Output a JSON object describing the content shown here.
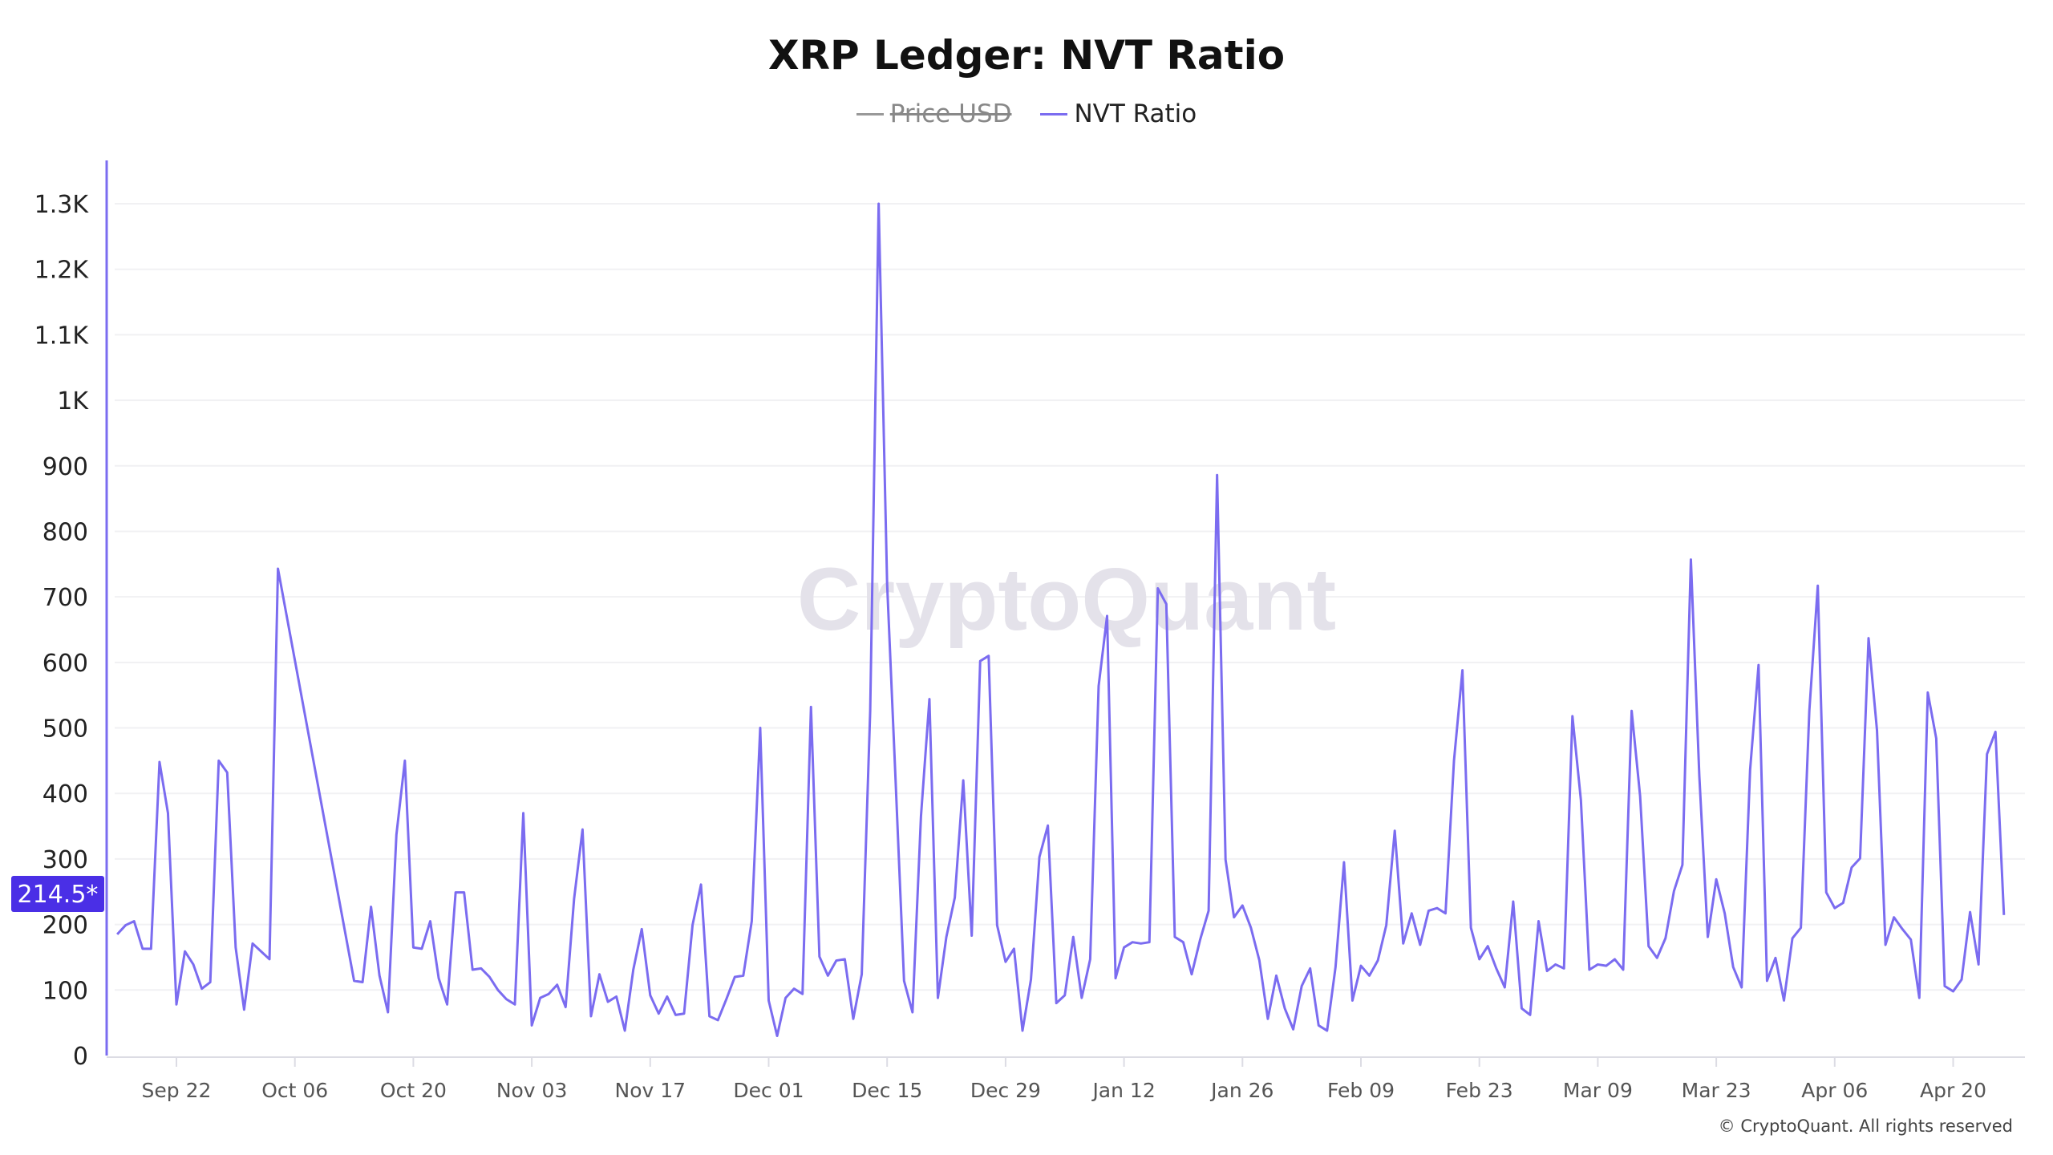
{
  "title": "XRP Ledger: NVT Ratio",
  "legend": [
    {
      "label": "Price USD",
      "color": "#999999",
      "visible": false
    },
    {
      "label": "NVT Ratio",
      "color": "#7b6cf0",
      "visible": true
    }
  ],
  "watermark": "CryptoQuant",
  "copyright": "© CryptoQuant. All rights reserved",
  "last_value_badge": {
    "text": "214.5*",
    "value": 214.5,
    "color": "#4a2fe6"
  },
  "chart_data": {
    "type": "line",
    "title": "XRP Ledger: NVT Ratio",
    "xlabel": "",
    "ylabel": "",
    "ylim": [
      0,
      1300
    ],
    "y_ticks": [
      "0",
      "100",
      "200",
      "300",
      "400",
      "500",
      "600",
      "700",
      "800",
      "900",
      "1K",
      "1.1K",
      "1.2K",
      "1.3K"
    ],
    "y_tick_values": [
      0,
      100,
      200,
      300,
      400,
      500,
      600,
      700,
      800,
      900,
      1000,
      1100,
      1200,
      1300
    ],
    "x_ticks": [
      "Sep 22",
      "Oct 06",
      "Oct 20",
      "Nov 03",
      "Nov 17",
      "Dec 01",
      "Dec 15",
      "Dec 29",
      "Jan 12",
      "Jan 26",
      "Feb 09",
      "Feb 23",
      "Mar 09",
      "Mar 23",
      "Apr 06",
      "Apr 20"
    ],
    "grid": true,
    "legend_position": "top-center",
    "series": [
      {
        "name": "NVT Ratio",
        "color": "#7b6cf0",
        "segments": [
          {
            "from": "Sep 15",
            "values": [
              185,
              199,
              205,
              163,
              163,
              448,
              370,
              78,
              159,
              139,
              102,
              112,
              450,
              432,
              165,
              70,
              171,
              159,
              147,
              743
            ]
          },
          {
            "from": "Oct 13",
            "values": [
              114,
              112,
              227,
              122,
              66,
              337,
              450,
              165,
              163,
              205,
              118,
              78,
              249,
              249,
              131,
              133,
              120,
              100,
              86,
              78,
              370,
              46,
              88,
              94,
              108,
              74,
              239,
              345,
              60,
              124,
              82,
              90,
              38,
              131,
              193,
              92,
              64,
              90,
              62,
              64,
              199,
              261,
              60,
              54,
              86,
              120,
              122,
              205,
              500,
              84,
              30,
              88,
              102,
              94,
              532,
              151,
              122,
              145,
              147,
              56,
              124,
              526,
              1300,
              720,
              420,
              114,
              66,
              365,
              544,
              88,
              181,
              241,
              420,
              183,
              602,
              610,
              199,
              143,
              163,
              38,
              116,
              303,
              351,
              80,
              92,
              181,
              88,
              147,
              564,
              671,
              118,
              165,
              173,
              171,
              173,
              713,
              689,
              181,
              173,
              124,
              177,
              221,
              886,
              299,
              211,
              229,
              195,
              145,
              56,
              122,
              72,
              40,
              106,
              133,
              46,
              38,
              135,
              295,
              84,
              137,
              122,
              145,
              199,
              343,
              171,
              217,
              169,
              221,
              225,
              217,
              450,
              588,
              195,
              147,
              167,
              133,
              104,
              235,
              72,
              62,
              205,
              129,
              139,
              133,
              518,
              390,
              131,
              139,
              137,
              147,
              131,
              526,
              396,
              167,
              149,
              179,
              251,
              291,
              757,
              426,
              181,
              269,
              217,
              135,
              104,
              436,
              596,
              114,
              149,
              84,
              179,
              195,
              526,
              717,
              249,
              225,
              233,
              287,
              301,
              637,
              496,
              169,
              211,
              193,
              177,
              88,
              554,
              484,
              106,
              98,
              116,
              219,
              139,
              460,
              494,
              214.5
            ]
          }
        ]
      }
    ]
  }
}
